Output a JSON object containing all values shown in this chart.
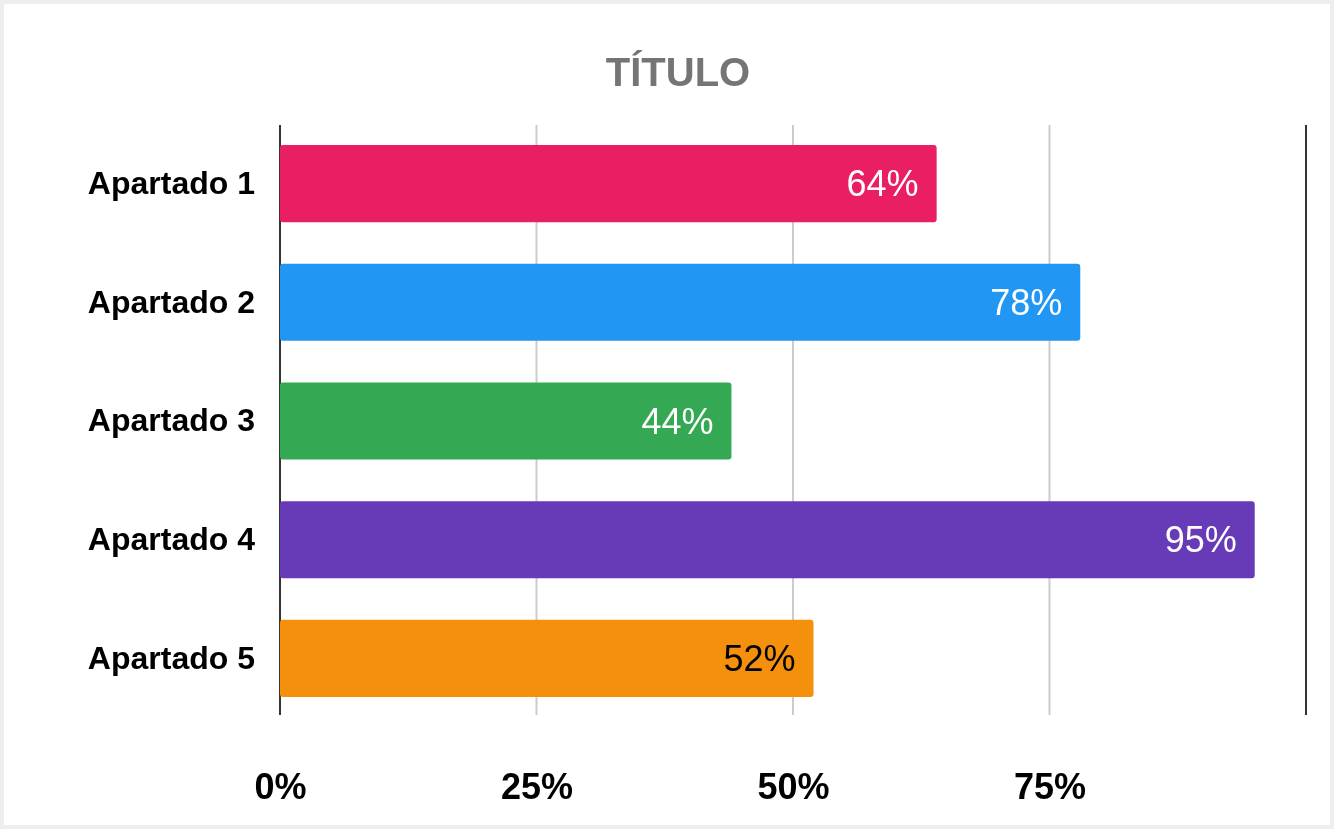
{
  "chart_data": {
    "type": "bar",
    "orientation": "horizontal",
    "title": "TÍTULO",
    "categories": [
      "Apartado 1",
      "Apartado 2",
      "Apartado 3",
      "Apartado 4",
      "Apartado 5"
    ],
    "values": [
      64,
      78,
      44,
      95,
      52
    ],
    "colors": [
      "#e91e63",
      "#2196f3",
      "#34a853",
      "#673ab7",
      "#f4900c"
    ],
    "value_labels": [
      "64%",
      "78%",
      "44%",
      "95%",
      "52%"
    ],
    "xlim": [
      0,
      100
    ],
    "xticks": [
      {
        "value": 0,
        "label": "0%"
      },
      {
        "value": 25,
        "label": "25%"
      },
      {
        "value": 50,
        "label": "50%"
      },
      {
        "value": 75,
        "label": "75%"
      },
      {
        "value": 100,
        "label": null
      }
    ],
    "grid": "x"
  }
}
